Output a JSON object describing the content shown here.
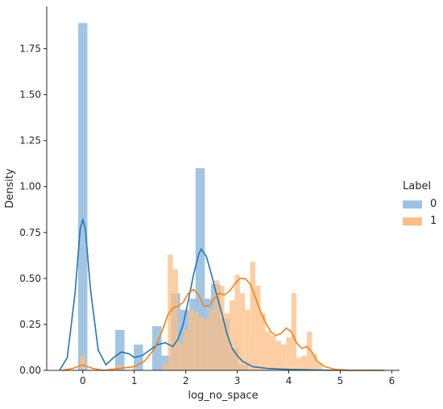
{
  "chart_data": {
    "type": "bar",
    "subtype": "histogram_with_kde",
    "xlabel": "log_no_space",
    "ylabel": "Density",
    "xlim": [
      -0.7,
      6.15
    ],
    "ylim": [
      0,
      1.98
    ],
    "xticks": [
      0,
      1,
      2,
      3,
      4,
      5,
      6
    ],
    "yticks": [
      0.0,
      0.25,
      0.5,
      0.75,
      1.0,
      1.25,
      1.5,
      1.75
    ],
    "ytick_labels": [
      "0.00",
      "0.25",
      "0.50",
      "0.75",
      "1.00",
      "1.25",
      "1.50",
      "1.75"
    ],
    "grid": false,
    "legend": {
      "title": "Label",
      "placement": "right",
      "entries": [
        "0",
        "1"
      ]
    },
    "series": [
      {
        "name": "0",
        "color": "#1f77b4",
        "bar_color": "#9cc2e2",
        "bin_width": 0.18,
        "bars": [
          [
            0.0,
            1.89
          ],
          [
            0.72,
            0.22
          ],
          [
            1.08,
            0.14
          ],
          [
            1.44,
            0.24
          ],
          [
            1.62,
            0.08
          ],
          [
            1.8,
            0.42
          ],
          [
            1.98,
            0.33
          ],
          [
            2.16,
            0.39
          ],
          [
            2.28,
            1.1
          ],
          [
            2.4,
            0.39
          ],
          [
            2.58,
            0.47
          ],
          [
            2.76,
            0.28
          ],
          [
            2.94,
            0.12
          ],
          [
            3.12,
            0.03
          ]
        ],
        "kde": [
          [
            -0.45,
            0.0
          ],
          [
            -0.3,
            0.07
          ],
          [
            -0.15,
            0.42
          ],
          [
            -0.05,
            0.77
          ],
          [
            0.0,
            0.82
          ],
          [
            0.05,
            0.77
          ],
          [
            0.15,
            0.44
          ],
          [
            0.3,
            0.11
          ],
          [
            0.45,
            0.03
          ],
          [
            0.6,
            0.07
          ],
          [
            0.75,
            0.1
          ],
          [
            0.9,
            0.09
          ],
          [
            1.0,
            0.07
          ],
          [
            1.15,
            0.08
          ],
          [
            1.3,
            0.11
          ],
          [
            1.45,
            0.14
          ],
          [
            1.6,
            0.15
          ],
          [
            1.75,
            0.13
          ],
          [
            1.85,
            0.17
          ],
          [
            1.95,
            0.25
          ],
          [
            2.05,
            0.38
          ],
          [
            2.15,
            0.52
          ],
          [
            2.25,
            0.63
          ],
          [
            2.3,
            0.66
          ],
          [
            2.4,
            0.62
          ],
          [
            2.5,
            0.52
          ],
          [
            2.6,
            0.41
          ],
          [
            2.7,
            0.31
          ],
          [
            2.8,
            0.2
          ],
          [
            2.9,
            0.12
          ],
          [
            3.0,
            0.08
          ],
          [
            3.1,
            0.05
          ],
          [
            3.3,
            0.02
          ],
          [
            3.6,
            0.01
          ],
          [
            4.0,
            0.005
          ],
          [
            4.5,
            0.002
          ],
          [
            5.0,
            0.0
          ],
          [
            5.85,
            0.0
          ]
        ]
      },
      {
        "name": "1",
        "color": "#ff7f0e",
        "bar_color": "#fdbd84",
        "bin_width": 0.1,
        "bars": [
          [
            0.0,
            0.08
          ],
          [
            0.7,
            0.03
          ],
          [
            1.0,
            0.01
          ],
          [
            1.6,
            0.04
          ],
          [
            1.7,
            0.63
          ],
          [
            1.8,
            0.55
          ],
          [
            1.9,
            0.15
          ],
          [
            2.0,
            0.22
          ],
          [
            2.1,
            0.33
          ],
          [
            2.2,
            0.32
          ],
          [
            2.3,
            0.29
          ],
          [
            2.4,
            0.28
          ],
          [
            2.5,
            0.33
          ],
          [
            2.6,
            0.49
          ],
          [
            2.7,
            0.46
          ],
          [
            2.8,
            0.31
          ],
          [
            2.9,
            0.38
          ],
          [
            3.0,
            0.52
          ],
          [
            3.1,
            0.42
          ],
          [
            3.2,
            0.33
          ],
          [
            3.3,
            0.59
          ],
          [
            3.4,
            0.46
          ],
          [
            3.5,
            0.31
          ],
          [
            3.6,
            0.21
          ],
          [
            3.7,
            0.19
          ],
          [
            3.8,
            0.16
          ],
          [
            3.9,
            0.14
          ],
          [
            4.0,
            0.18
          ],
          [
            4.1,
            0.42
          ],
          [
            4.2,
            0.07
          ],
          [
            4.3,
            0.08
          ],
          [
            4.4,
            0.21
          ],
          [
            4.5,
            0.09
          ],
          [
            4.6,
            0.04
          ]
        ],
        "kde": [
          [
            -0.4,
            0.0
          ],
          [
            -0.2,
            0.01
          ],
          [
            0.0,
            0.03
          ],
          [
            0.2,
            0.01
          ],
          [
            0.4,
            0.0
          ],
          [
            0.7,
            0.01
          ],
          [
            1.0,
            0.02
          ],
          [
            1.2,
            0.05
          ],
          [
            1.4,
            0.12
          ],
          [
            1.55,
            0.22
          ],
          [
            1.65,
            0.3
          ],
          [
            1.75,
            0.34
          ],
          [
            1.85,
            0.35
          ],
          [
            1.95,
            0.37
          ],
          [
            2.05,
            0.42
          ],
          [
            2.15,
            0.44
          ],
          [
            2.25,
            0.41
          ],
          [
            2.35,
            0.35
          ],
          [
            2.45,
            0.35
          ],
          [
            2.55,
            0.39
          ],
          [
            2.65,
            0.42
          ],
          [
            2.75,
            0.41
          ],
          [
            2.85,
            0.43
          ],
          [
            2.95,
            0.47
          ],
          [
            3.05,
            0.5
          ],
          [
            3.15,
            0.5
          ],
          [
            3.25,
            0.47
          ],
          [
            3.35,
            0.4
          ],
          [
            3.45,
            0.32
          ],
          [
            3.55,
            0.26
          ],
          [
            3.65,
            0.21
          ],
          [
            3.75,
            0.19
          ],
          [
            3.85,
            0.2
          ],
          [
            3.95,
            0.23
          ],
          [
            4.05,
            0.21
          ],
          [
            4.15,
            0.15
          ],
          [
            4.25,
            0.12
          ],
          [
            4.35,
            0.13
          ],
          [
            4.45,
            0.1
          ],
          [
            4.55,
            0.05
          ],
          [
            4.7,
            0.02
          ],
          [
            4.9,
            0.005
          ],
          [
            5.2,
            0.001
          ],
          [
            5.85,
            0.0
          ]
        ]
      }
    ]
  }
}
